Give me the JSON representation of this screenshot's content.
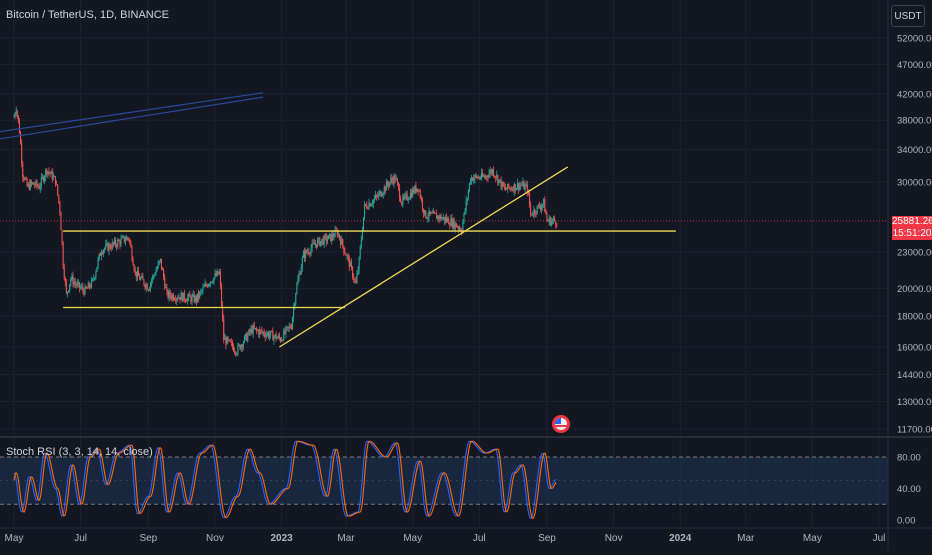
{
  "header": {
    "symbol_title": "Bitcoin / TetherUS, 1D, BINANCE",
    "currency_button": "USDT"
  },
  "price_tag": {
    "price": "25881.26",
    "countdown": "15:51:20"
  },
  "indicator": {
    "title": "Stoch RSI (3, 3, 14, 14, close)"
  },
  "colors": {
    "background": "#131722",
    "grid": "#1e222d",
    "up": "#26a69a",
    "down": "#ef5350",
    "trendline": "#f0dc50",
    "channel": "#2a4a9f",
    "stoch_k": "#2962ff",
    "stoch_d": "#ff6d00",
    "stoch_band": "#1e3355",
    "price_line": "#f23645"
  },
  "icons": {
    "event": "flag-event-icon"
  },
  "chart_data": {
    "type": "candlestick",
    "title": "Bitcoin / TetherUS, 1D, BINANCE",
    "ylabel": "USDT",
    "log_scale": true,
    "grid": true,
    "x_tick_labels": [
      "May",
      "Jul",
      "Sep",
      "Nov",
      "2023",
      "Mar",
      "May",
      "Jul",
      "Sep",
      "Nov",
      "2024",
      "Mar",
      "May",
      "Jul"
    ],
    "y_tick_labels": [
      "52000.00",
      "47000.00",
      "42000.00",
      "38000.00",
      "34000.00",
      "30000.00",
      "23000.00",
      "20000.00",
      "18000.00",
      "16000.00",
      "14400.00",
      "13000.00",
      "11700.00"
    ],
    "last_price": 25881.26,
    "price_path": [
      [
        "2022-05-01",
        38500
      ],
      [
        "2022-05-03",
        40000
      ],
      [
        "2022-05-06",
        36500
      ],
      [
        "2022-05-09",
        31000
      ],
      [
        "2022-05-13",
        29500
      ],
      [
        "2022-05-18",
        29800
      ],
      [
        "2022-05-24",
        29500
      ],
      [
        "2022-05-31",
        31500
      ],
      [
        "2022-06-08",
        30200
      ],
      [
        "2022-06-12",
        27000
      ],
      [
        "2022-06-15",
        22000
      ],
      [
        "2022-06-18",
        19500
      ],
      [
        "2022-06-22",
        20800
      ],
      [
        "2022-06-28",
        20200
      ],
      [
        "2022-07-05",
        19800
      ],
      [
        "2022-07-12",
        20500
      ],
      [
        "2022-07-20",
        23200
      ],
      [
        "2022-07-30",
        23600
      ],
      [
        "2022-08-14",
        24300
      ],
      [
        "2022-08-20",
        21200
      ],
      [
        "2022-09-01",
        20100
      ],
      [
        "2022-09-12",
        22200
      ],
      [
        "2022-09-18",
        19500
      ],
      [
        "2022-09-30",
        19400
      ],
      [
        "2022-10-15",
        19200
      ],
      [
        "2022-10-26",
        20500
      ],
      [
        "2022-11-05",
        21200
      ],
      [
        "2022-11-09",
        16500
      ],
      [
        "2022-11-21",
        15800
      ],
      [
        "2022-12-05",
        17100
      ],
      [
        "2022-12-20",
        16800
      ],
      [
        "2022-12-31",
        16500
      ],
      [
        "2023-01-10",
        17400
      ],
      [
        "2023-01-14",
        19800
      ],
      [
        "2023-01-21",
        22700
      ],
      [
        "2023-02-02",
        23800
      ],
      [
        "2023-02-15",
        24300
      ],
      [
        "2023-02-21",
        24800
      ],
      [
        "2023-03-03",
        22300
      ],
      [
        "2023-03-10",
        20300
      ],
      [
        "2023-03-13",
        22200
      ],
      [
        "2023-03-18",
        27300
      ],
      [
        "2023-03-30",
        28400
      ],
      [
        "2023-04-11",
        30200
      ],
      [
        "2023-04-15",
        30500
      ],
      [
        "2023-04-21",
        27800
      ],
      [
        "2023-05-06",
        29500
      ],
      [
        "2023-05-12",
        26500
      ],
      [
        "2023-05-25",
        26300
      ],
      [
        "2023-06-05",
        25800
      ],
      [
        "2023-06-15",
        25100
      ],
      [
        "2023-06-20",
        28300
      ],
      [
        "2023-06-23",
        30500
      ],
      [
        "2023-07-06",
        30600
      ],
      [
        "2023-07-13",
        31400
      ],
      [
        "2023-07-24",
        29200
      ],
      [
        "2023-08-08",
        29700
      ],
      [
        "2023-08-14",
        29300
      ],
      [
        "2023-08-17",
        26600
      ],
      [
        "2023-08-29",
        27700
      ],
      [
        "2023-09-01",
        25900
      ],
      [
        "2023-09-10",
        25881
      ]
    ],
    "annotations": [
      {
        "type": "horizontal_segment",
        "price": 24900,
        "from": "2022-06-15",
        "to": "2023-12-28"
      },
      {
        "type": "horizontal_segment",
        "price": 18600,
        "from": "2022-06-15",
        "to": "2023-02-28"
      },
      {
        "type": "trendline",
        "from": [
          "2022-12-30",
          16000
        ],
        "to": [
          "2023-09-20",
          31800
        ]
      },
      {
        "type": "channel_line",
        "from": [
          "2022-04-01",
          35000
        ],
        "to": [
          "2022-12-15",
          41500
        ]
      },
      {
        "type": "channel_line",
        "from": [
          "2022-04-01",
          36000
        ],
        "to": [
          "2022-12-15",
          42200
        ]
      }
    ],
    "indicator": {
      "name": "Stoch RSI (3, 3, 14, 14, close)",
      "ylim": [
        0,
        100
      ],
      "y_tick_labels": [
        "80.00",
        "40.00",
        "0.00"
      ],
      "bands": [
        20,
        80
      ],
      "k_path": [
        [
          "2022-05-01",
          60
        ],
        [
          "2022-05-08",
          10
        ],
        [
          "2022-05-15",
          55
        ],
        [
          "2022-05-22",
          25
        ],
        [
          "2022-05-29",
          85
        ],
        [
          "2022-06-08",
          40
        ],
        [
          "2022-06-14",
          5
        ],
        [
          "2022-06-22",
          70
        ],
        [
          "2022-06-30",
          20
        ],
        [
          "2022-07-08",
          80
        ],
        [
          "2022-07-16",
          90
        ],
        [
          "2022-07-24",
          45
        ],
        [
          "2022-08-03",
          85
        ],
        [
          "2022-08-15",
          95
        ],
        [
          "2022-08-22",
          8
        ],
        [
          "2022-09-01",
          30
        ],
        [
          "2022-09-10",
          92
        ],
        [
          "2022-09-18",
          10
        ],
        [
          "2022-09-28",
          60
        ],
        [
          "2022-10-06",
          20
        ],
        [
          "2022-10-18",
          85
        ],
        [
          "2022-10-28",
          95
        ],
        [
          "2022-11-09",
          3
        ],
        [
          "2022-11-20",
          30
        ],
        [
          "2022-12-01",
          90
        ],
        [
          "2022-12-10",
          60
        ],
        [
          "2022-12-20",
          20
        ],
        [
          "2023-01-05",
          40
        ],
        [
          "2023-01-14",
          100
        ],
        [
          "2023-01-28",
          95
        ],
        [
          "2023-02-10",
          30
        ],
        [
          "2023-02-18",
          90
        ],
        [
          "2023-03-01",
          5
        ],
        [
          "2023-03-12",
          10
        ],
        [
          "2023-03-20",
          100
        ],
        [
          "2023-04-05",
          80
        ],
        [
          "2023-04-15",
          98
        ],
        [
          "2023-04-24",
          10
        ],
        [
          "2023-05-06",
          75
        ],
        [
          "2023-05-14",
          5
        ],
        [
          "2023-05-28",
          60
        ],
        [
          "2023-06-10",
          5
        ],
        [
          "2023-06-22",
          100
        ],
        [
          "2023-07-06",
          85
        ],
        [
          "2023-07-16",
          90
        ],
        [
          "2023-07-24",
          10
        ],
        [
          "2023-08-01",
          60
        ],
        [
          "2023-08-08",
          70
        ],
        [
          "2023-08-17",
          2
        ],
        [
          "2023-08-28",
          85
        ],
        [
          "2023-09-03",
          40
        ],
        [
          "2023-09-10",
          52
        ]
      ]
    }
  }
}
